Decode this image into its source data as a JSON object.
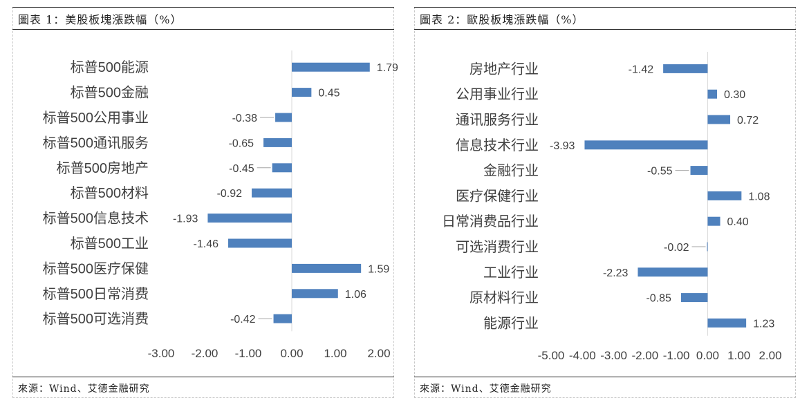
{
  "charts": [
    {
      "title": "圖表 1：美股板塊漲跌幅（%）",
      "source": "來源：Wind、艾德金融研究"
    },
    {
      "title": "圖表 2：歐股板塊漲跌幅（%）",
      "source": "來源：Wind、艾德金融研究"
    }
  ],
  "chart_data": [
    {
      "type": "bar",
      "orientation": "horizontal",
      "categories": [
        "标普500能源",
        "标普500金融",
        "标普500公用事业",
        "标普500通讯服务",
        "标普500房地产",
        "标普500材料",
        "标普500信息技术",
        "标普500工业",
        "标普500医疗保健",
        "标普500日常消费",
        "标普500可选消费"
      ],
      "values": [
        1.79,
        0.45,
        -0.38,
        -0.65,
        -0.45,
        -0.92,
        -1.93,
        -1.46,
        1.59,
        1.06,
        -0.42
      ],
      "value_labels": [
        "1.79",
        "0.45",
        "-0.38",
        "-0.65",
        "-0.45",
        "-0.92",
        "-1.93",
        "-1.46",
        "1.59",
        "1.06",
        "-0.42"
      ],
      "xlim": [
        -3,
        2
      ],
      "xticks": [
        "-3.00",
        "-2.00",
        "-1.00",
        "0.00",
        "1.00",
        "2.00"
      ],
      "bar_color": "#4f81bd",
      "grid": false
    },
    {
      "type": "bar",
      "orientation": "horizontal",
      "categories": [
        "房地产行业",
        "公用事业行业",
        "通讯服务行业",
        "信息技术行业",
        "金融行业",
        "医疗保健行业",
        "日常消费品行业",
        "可选消费行业",
        "工业行业",
        "原材料行业",
        "能源行业"
      ],
      "values": [
        -1.42,
        0.3,
        0.72,
        -3.93,
        -0.55,
        1.08,
        0.4,
        -0.02,
        -2.23,
        -0.85,
        1.23
      ],
      "value_labels": [
        "-1.42",
        "0.30",
        "0.72",
        "-3.93",
        "-0.55",
        "1.08",
        "0.40",
        "-0.02",
        "-2.23",
        "-0.85",
        "1.23"
      ],
      "xlim": [
        -5,
        2
      ],
      "xticks": [
        "-5.00",
        "-4.00",
        "-3.00",
        "-2.00",
        "-1.00",
        "0.00",
        "1.00",
        "2.00"
      ],
      "bar_color": "#4f81bd",
      "grid": false
    }
  ]
}
